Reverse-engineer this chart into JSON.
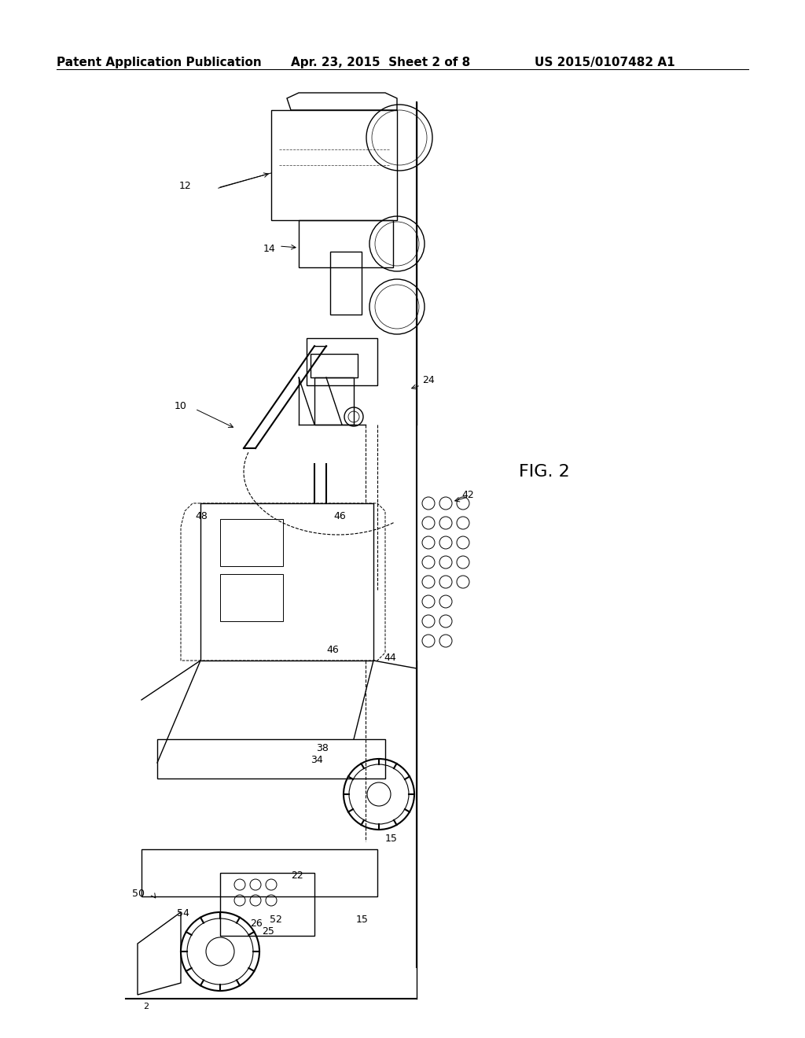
{
  "background_color": "#ffffff",
  "header_left": "Patent Application Publication",
  "header_center": "Apr. 23, 2015  Sheet 2 of 8",
  "header_right": "US 2015/0107482 A1",
  "fig_label": "FIG. 2",
  "ref_numbers": [
    "10",
    "12",
    "14",
    "15",
    "22",
    "24",
    "25",
    "26",
    "34",
    "38",
    "42",
    "44",
    "46",
    "48",
    "50",
    "52",
    "54"
  ],
  "title_fontsize": 11,
  "header_fontsize": 11
}
